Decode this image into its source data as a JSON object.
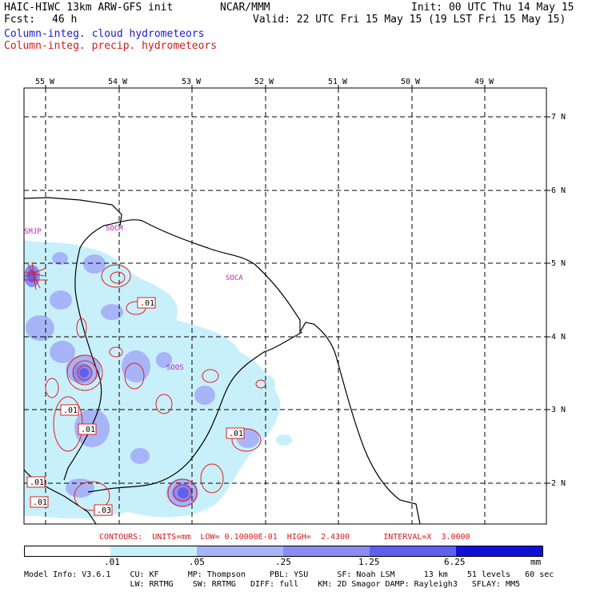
{
  "header": {
    "model_title": "HAIC-HIWC 13km ARW-GFS init",
    "institution": "NCAR/MMM",
    "init_time": "Init: 00 UTC Thu 14 May 15",
    "forecast_label": "Fcst:",
    "forecast_hours": "46 h",
    "valid_time": "Valid: 22 UTC Fri 15 May 15 (19 LST Fri 15 May 15)",
    "field_cloud": "Column-integ. cloud hydrometeors",
    "field_precip": "Column-integ. precip. hydrometeors"
  },
  "map": {
    "lon_labels": [
      "55 W",
      "54 W",
      "53 W",
      "52 W",
      "51 W",
      "50 W",
      "49 W"
    ],
    "lat_labels": [
      "7 N",
      "6 N",
      "5 N",
      "4 N",
      "3 N",
      "2 N"
    ],
    "stations": [
      "SMJP",
      "SOCM",
      "SOCA",
      "SOOS"
    ],
    "contour_labels": [
      ".01",
      ".01",
      ".01",
      ".01",
      ".01",
      ".01",
      ".03"
    ]
  },
  "contour_info": "CONTOURS:  UNITS=mm  LOW= 0.10000E-01  HIGH=  2.4300       INTERVAL=X  3.0000",
  "colorbar": {
    "ticks": [
      ".01",
      ".05",
      ".25",
      "1.25",
      "6.25"
    ],
    "units": "mm",
    "colors": [
      "#ffffff",
      "#c8f0fa",
      "#a8b4f8",
      "#8a8cf4",
      "#6060ee",
      "#3434e4",
      "#1010d8"
    ]
  },
  "model_info": {
    "line1": "Model Info: V3.6.1    CU: KF      MP: Thompson     PBL: YSU      SF: Noah LSM      13 km    51 levels   60 sec",
    "line2": "                      LW: RRTMG    SW: RRTMG   DIFF: full    KM: 2D Smagor DAMP: Rayleigh3   SFLAY: MM5"
  },
  "colors": {
    "cloud_text": "#1a1ad6",
    "precip_text": "#d21a1a",
    "station_text": "#c41ac4",
    "coast": "#000000",
    "precip_contour": "#e02020"
  }
}
